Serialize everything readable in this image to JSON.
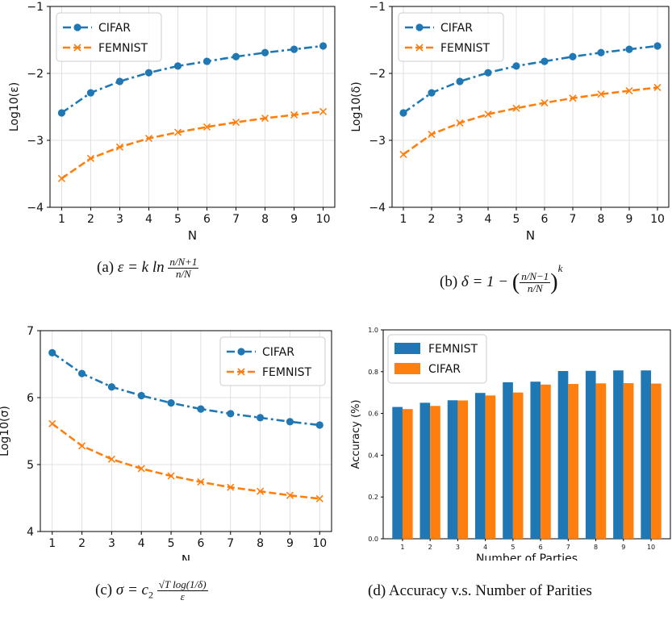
{
  "chart_data": [
    {
      "type": "line",
      "x": [
        1,
        2,
        3,
        4,
        5,
        6,
        7,
        8,
        9,
        10
      ],
      "xlabel": "N",
      "ylabel": "Log10(ε)",
      "ylim": [
        -4,
        -1
      ],
      "yticks": [
        -4,
        -3,
        -2,
        -1
      ],
      "grid": true,
      "legend": "top-left",
      "series": [
        {
          "name": "CIFAR",
          "color": "#1f77b4",
          "style": "dash-dot",
          "marker": "circle",
          "values": [
            -2.59,
            -2.29,
            -2.12,
            -1.99,
            -1.89,
            -1.82,
            -1.75,
            -1.69,
            -1.64,
            -1.59
          ]
        },
        {
          "name": "FEMNIST",
          "color": "#ff7f0e",
          "style": "dashed",
          "marker": "x",
          "values": [
            -3.57,
            -3.27,
            -3.1,
            -2.97,
            -2.88,
            -2.8,
            -2.73,
            -2.67,
            -2.62,
            -2.57
          ]
        }
      ],
      "caption": "(a) ε = k ln (n/N+1)/(n/N)"
    },
    {
      "type": "line",
      "x": [
        1,
        2,
        3,
        4,
        5,
        6,
        7,
        8,
        9,
        10
      ],
      "xlabel": "N",
      "ylabel": "Log10(δ)",
      "ylim": [
        -4,
        -1
      ],
      "yticks": [
        -4,
        -3,
        -2,
        -1
      ],
      "grid": true,
      "legend": "top-left",
      "series": [
        {
          "name": "CIFAR",
          "color": "#1f77b4",
          "style": "dash-dot",
          "marker": "circle",
          "values": [
            -2.59,
            -2.29,
            -2.12,
            -1.99,
            -1.89,
            -1.82,
            -1.75,
            -1.69,
            -1.64,
            -1.59
          ]
        },
        {
          "name": "FEMNIST",
          "color": "#ff7f0e",
          "style": "dashed",
          "marker": "x",
          "values": [
            -3.21,
            -2.91,
            -2.74,
            -2.61,
            -2.52,
            -2.44,
            -2.37,
            -2.31,
            -2.26,
            -2.21
          ]
        }
      ],
      "caption": "(b) δ = 1 − ((n/N−1)/(n/N))^k"
    },
    {
      "type": "line",
      "x": [
        1,
        2,
        3,
        4,
        5,
        6,
        7,
        8,
        9,
        10
      ],
      "xlabel": "N",
      "ylabel": "Log10(σ)",
      "ylim": [
        4,
        7
      ],
      "yticks": [
        4,
        5,
        6,
        7
      ],
      "grid": true,
      "legend": "top-right",
      "series": [
        {
          "name": "CIFAR",
          "color": "#1f77b4",
          "style": "dash-dot",
          "marker": "circle",
          "values": [
            6.67,
            6.36,
            6.16,
            6.03,
            5.92,
            5.83,
            5.76,
            5.7,
            5.64,
            5.59
          ]
        },
        {
          "name": "FEMNIST",
          "color": "#ff7f0e",
          "style": "dashed",
          "marker": "x",
          "values": [
            5.61,
            5.28,
            5.08,
            4.94,
            4.83,
            4.74,
            4.66,
            4.6,
            4.54,
            4.49
          ]
        }
      ],
      "caption": "(c) σ = c2 √(T log(1/δ))/ε"
    },
    {
      "type": "bar",
      "categories": [
        "1",
        "2",
        "3",
        "4",
        "5",
        "6",
        "7",
        "8",
        "9",
        "10"
      ],
      "xlabel": "Number of Parties",
      "ylabel": "Accuracy (%)",
      "ylim": [
        0.0,
        1.0
      ],
      "yticks": [
        "0.0",
        "0.2",
        "0.4",
        "0.6",
        "0.8",
        "1.0"
      ],
      "grid": false,
      "legend": "top-left",
      "series": [
        {
          "name": "FEMNIST",
          "color": "#1f77b4",
          "values": [
            0.631,
            0.651,
            0.663,
            0.698,
            0.749,
            0.752,
            0.803,
            0.804,
            0.806,
            0.806
          ]
        },
        {
          "name": "CIFAR",
          "color": "#ff7f0e",
          "values": [
            0.621,
            0.636,
            0.662,
            0.686,
            0.7,
            0.738,
            0.741,
            0.744,
            0.745,
            0.743
          ]
        }
      ],
      "caption": "(d) Accuracy v.s. Number of Parities"
    }
  ],
  "captions": {
    "a_prefix": "(a) ",
    "a_lhs": "ε = k ln ",
    "a_num": "n/N+1",
    "a_den": "n/N",
    "b_prefix": "(b) ",
    "b_lhs": "δ = 1 − ",
    "b_num": "n/N−1",
    "b_den": "n/N",
    "b_exp": "k",
    "c_prefix": "(c) ",
    "c_lhs": "σ = c",
    "c_sub": "2",
    "c_num": "√T log(1/δ)",
    "c_den": "ε",
    "d_text": "(d) Accuracy v.s. Number of Parities"
  }
}
